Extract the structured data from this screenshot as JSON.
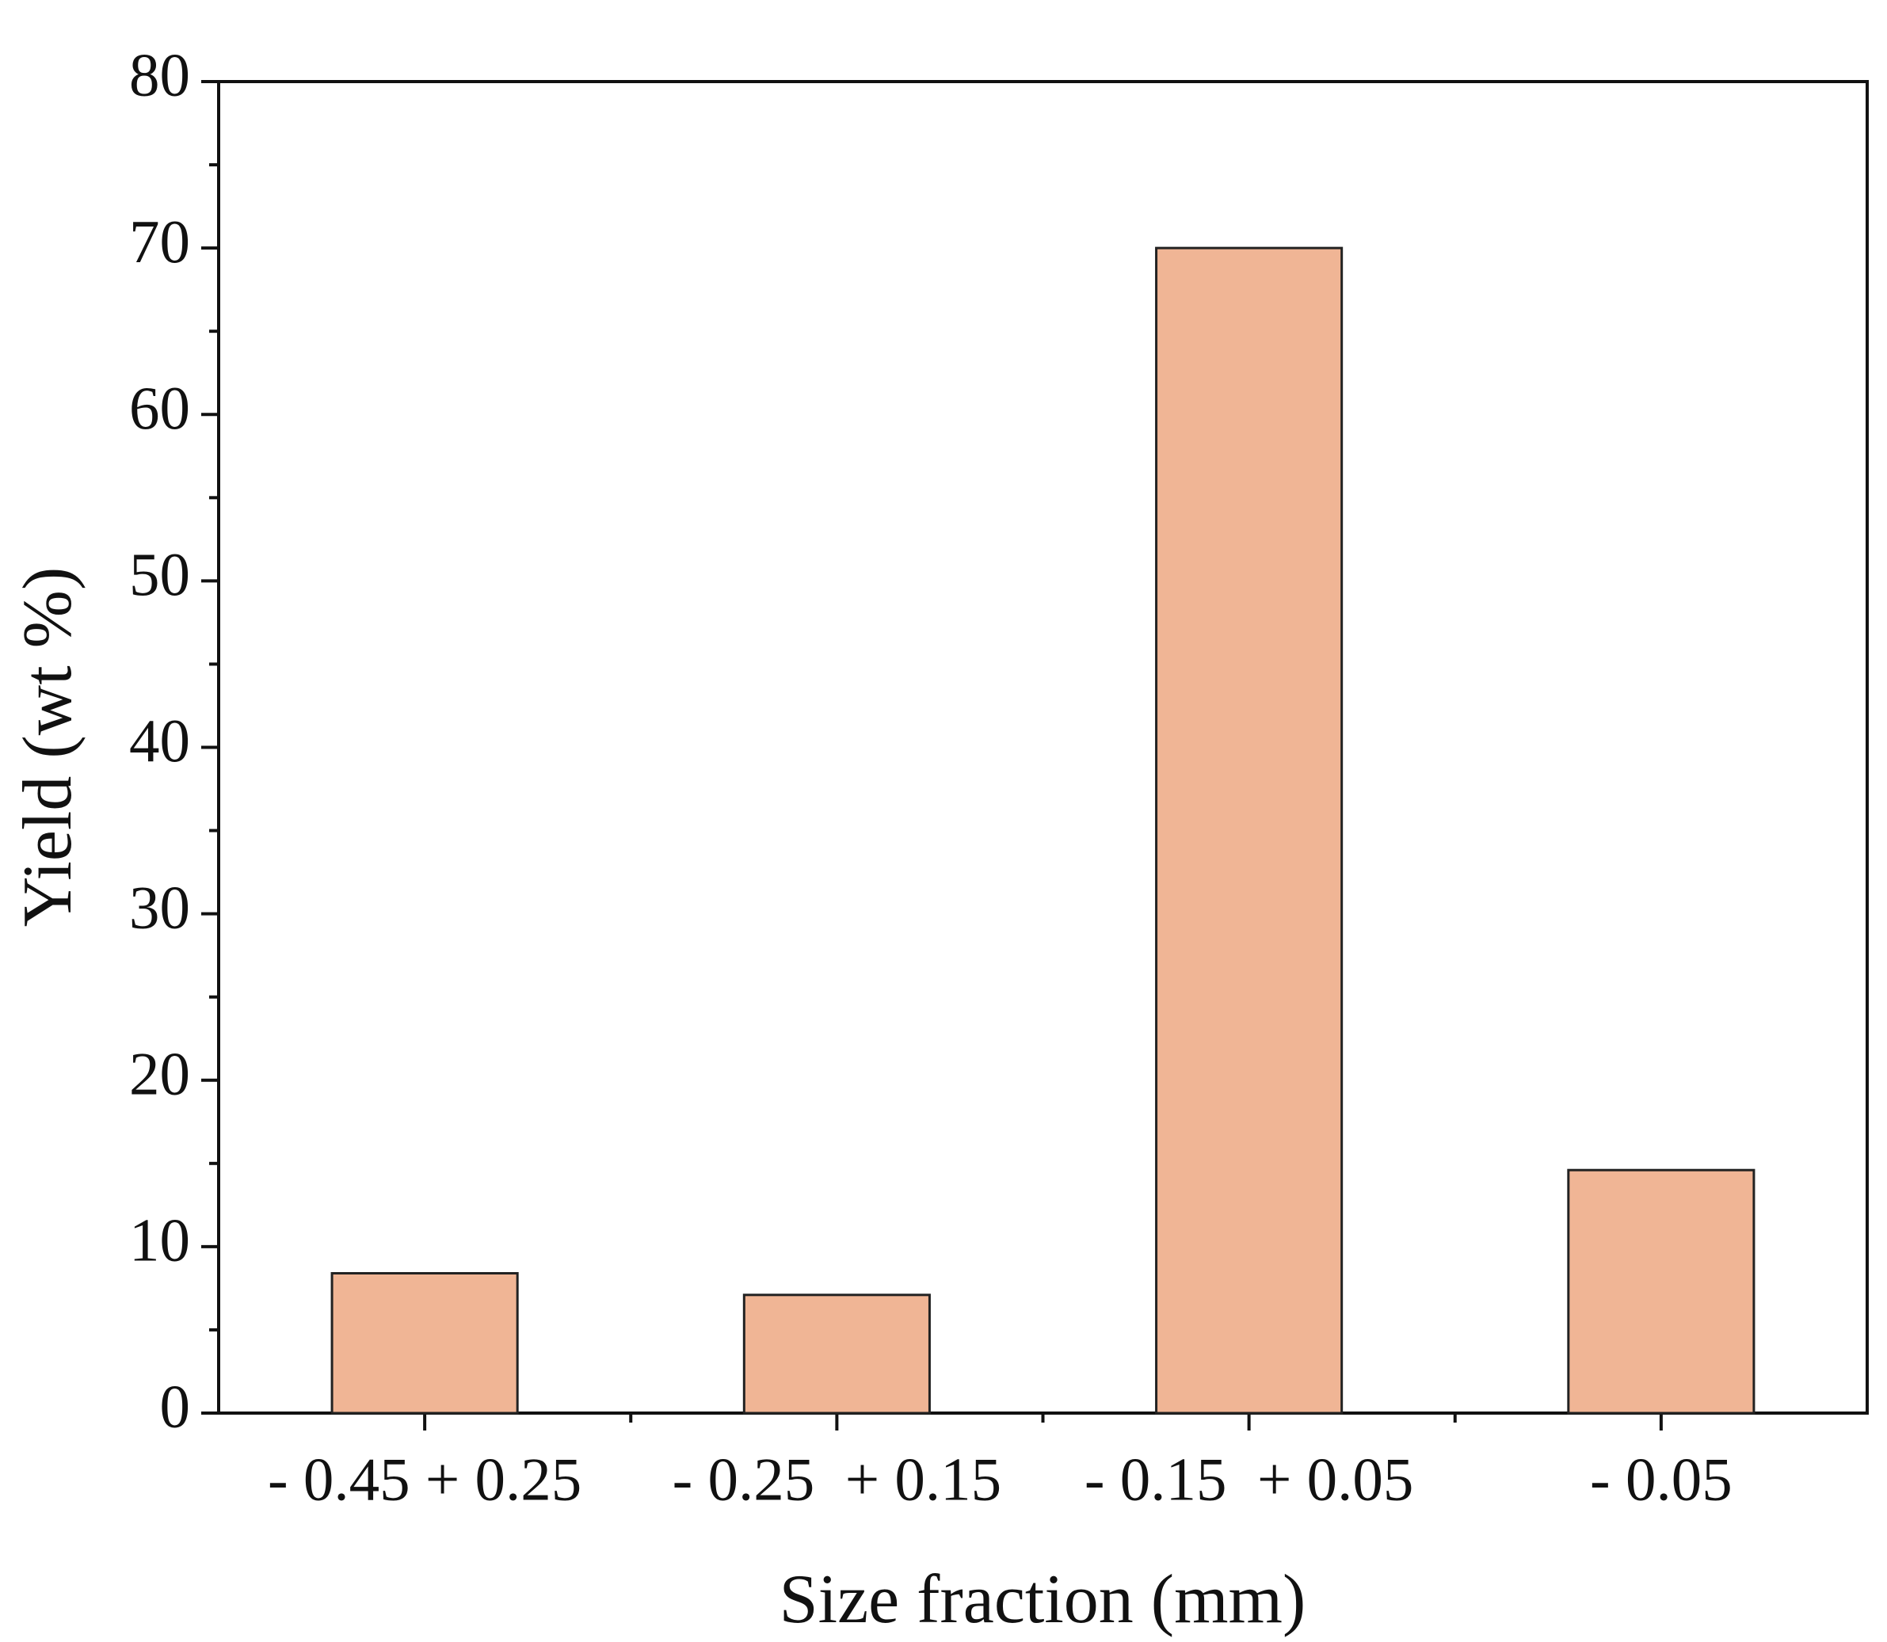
{
  "chart_data": {
    "type": "bar",
    "x_label": "Size fraction (mm)",
    "y_label": "Yield (wt %)",
    "categories": [
      "- 0.45 + 0.25",
      "- 0.25  + 0.15",
      "- 0.15  + 0.05",
      "- 0.05"
    ],
    "values": [
      8.4,
      7.1,
      70,
      14.6
    ],
    "color": "#f0b595",
    "ylim": [
      0,
      80
    ],
    "yticks": [
      0,
      10,
      20,
      30,
      40,
      50,
      60,
      70,
      80
    ],
    "grid": false
  }
}
